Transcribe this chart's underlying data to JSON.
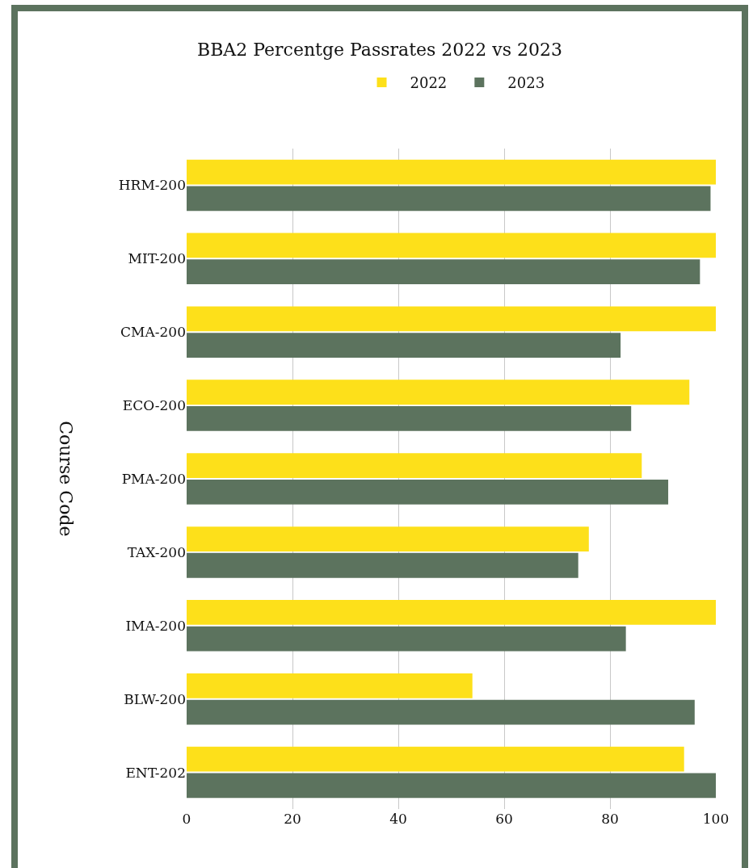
{
  "chart_data": {
    "type": "bar",
    "title": "BBA2 Percentge Passrates 2022 vs 2023",
    "ylabel": "Course Code",
    "orientation": "horizontal",
    "categories": [
      "HRM-200",
      "MIT-200",
      "CMA-200",
      "ECO-200",
      "PMA-200",
      "TAX-200",
      "IMA-200",
      "BLW-200",
      "ENT-202"
    ],
    "series": [
      {
        "name": "2022",
        "color": "#fde01a",
        "values": [
          100,
          100,
          100,
          95,
          86,
          76,
          100,
          54,
          94
        ]
      },
      {
        "name": "2023",
        "color": "#5c735e",
        "values": [
          99,
          97,
          82,
          84,
          91,
          74,
          83,
          96,
          100
        ]
      }
    ],
    "xlim": [
      0,
      100
    ],
    "xticks": [
      0,
      20,
      40,
      60,
      80,
      100
    ],
    "grid": "x",
    "legend": "top"
  }
}
